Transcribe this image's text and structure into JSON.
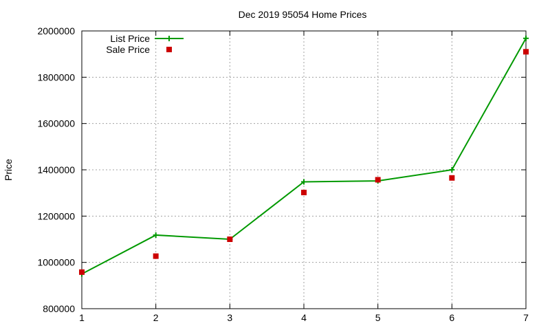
{
  "chart_data": {
    "type": "line",
    "title": "Dec 2019 95054 Home Prices",
    "xlabel": "",
    "ylabel": "Price",
    "x": [
      1,
      2,
      3,
      4,
      5,
      6,
      7
    ],
    "xlim": [
      1,
      7
    ],
    "ylim": [
      800000,
      2000000
    ],
    "xticks": [
      1,
      2,
      3,
      4,
      5,
      6,
      7
    ],
    "yticks": [
      800000,
      1000000,
      1200000,
      1400000,
      1600000,
      1800000,
      2000000
    ],
    "grid": true,
    "legend_position": "top-left",
    "series": [
      {
        "name": "List Price",
        "style": "line-plus",
        "color": "#009900",
        "values": [
          950000,
          1118000,
          1100000,
          1348000,
          1352000,
          1400000,
          1968000
        ]
      },
      {
        "name": "Sale Price",
        "style": "square",
        "color": "#cc0000",
        "values": [
          958000,
          1027000,
          1100000,
          1302000,
          1357000,
          1365000,
          1910000
        ]
      }
    ]
  }
}
